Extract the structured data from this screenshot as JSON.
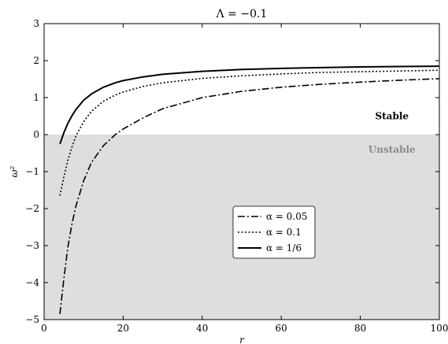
{
  "chart_data": {
    "type": "line",
    "title": "Λ = −0.1",
    "xlabel": "r",
    "ylabel": "ω²",
    "xlim": [
      0,
      100
    ],
    "ylim": [
      -5,
      3
    ],
    "xticks": [
      0,
      20,
      40,
      60,
      80,
      100
    ],
    "yticks": [
      -5,
      -4,
      -3,
      -2,
      -1,
      0,
      1,
      2,
      3
    ],
    "xtick_labels": [
      "0",
      "20",
      "40",
      "60",
      "80",
      "100"
    ],
    "ytick_labels": [
      "−5",
      "−4",
      "−3",
      "−2",
      "−1",
      "0",
      "1",
      "2",
      "3"
    ],
    "grid": false,
    "legend_position": "center-right",
    "shaded_region": {
      "from": -5,
      "to": 0,
      "color": "#dedede"
    },
    "annotations": [
      {
        "text": "Stable",
        "x": 88,
        "y": 0.5,
        "style": "stable"
      },
      {
        "text": "Unstable",
        "x": 88,
        "y": -0.4,
        "style": "unstable"
      }
    ],
    "series": [
      {
        "name": "α = 0.05",
        "dash": "dashdot",
        "x": [
          4,
          5,
          6,
          7,
          8,
          10,
          12,
          15,
          18,
          20,
          25,
          30,
          40,
          50,
          60,
          70,
          80,
          90,
          100
        ],
        "y": [
          -4.85,
          -3.9,
          -3.05,
          -2.45,
          -1.95,
          -1.25,
          -0.75,
          -0.3,
          0.0,
          0.15,
          0.45,
          0.7,
          1.0,
          1.17,
          1.28,
          1.36,
          1.42,
          1.47,
          1.51
        ]
      },
      {
        "name": "α = 0.1",
        "dash": "dotted",
        "x": [
          4,
          5,
          6,
          7,
          8,
          10,
          12,
          15,
          18,
          20,
          25,
          30,
          40,
          50,
          60,
          70,
          80,
          90,
          100
        ],
        "y": [
          -1.65,
          -1.15,
          -0.7,
          -0.35,
          -0.05,
          0.35,
          0.63,
          0.9,
          1.07,
          1.15,
          1.3,
          1.4,
          1.52,
          1.59,
          1.64,
          1.68,
          1.7,
          1.72,
          1.74
        ]
      },
      {
        "name": "α = 1/6",
        "dash": "solid",
        "x": [
          4,
          5,
          6,
          7,
          8,
          10,
          12,
          15,
          18,
          20,
          25,
          30,
          40,
          50,
          60,
          70,
          80,
          90,
          100
        ],
        "y": [
          -0.25,
          0.05,
          0.3,
          0.5,
          0.67,
          0.93,
          1.1,
          1.28,
          1.4,
          1.46,
          1.56,
          1.63,
          1.71,
          1.76,
          1.79,
          1.81,
          1.83,
          1.84,
          1.85
        ]
      }
    ]
  }
}
